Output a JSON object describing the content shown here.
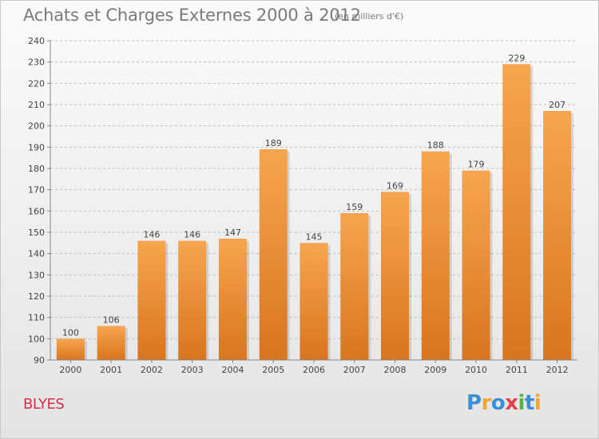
{
  "header": {
    "title": "Achats et Charges Externes 2000 à 2012",
    "unit": "(en milliers d'€)"
  },
  "footer": {
    "town": "BLYES",
    "logo_letters": [
      "P",
      "r",
      "o",
      "x",
      "i",
      "t",
      "i"
    ],
    "logo_colors": [
      "#3a8fd8",
      "#f2a33a",
      "#3a8fd8",
      "#e2434b",
      "#5bb04a",
      "#3a8fd8",
      "#f2a33a"
    ]
  },
  "colors": {
    "bar_top": "#f7a54f",
    "bar_bottom": "#d9751f",
    "grid": "#bdbdbd",
    "text": "#444444"
  },
  "chart_data": {
    "type": "bar",
    "title": "Achats et Charges Externes 2000 à 2012",
    "subtitle": "(en milliers d'€)",
    "xlabel": "",
    "ylabel": "",
    "categories": [
      "2000",
      "2001",
      "2002",
      "2003",
      "2004",
      "2005",
      "2006",
      "2007",
      "2008",
      "2009",
      "2010",
      "2011",
      "2012"
    ],
    "values": [
      100,
      106,
      146,
      146,
      147,
      189,
      145,
      159,
      169,
      188,
      179,
      229,
      207
    ],
    "ylim": [
      90,
      240
    ],
    "yticks": [
      90,
      100,
      110,
      120,
      130,
      140,
      150,
      160,
      170,
      180,
      190,
      200,
      210,
      220,
      230,
      240
    ],
    "grid": true,
    "data_labels": true
  }
}
